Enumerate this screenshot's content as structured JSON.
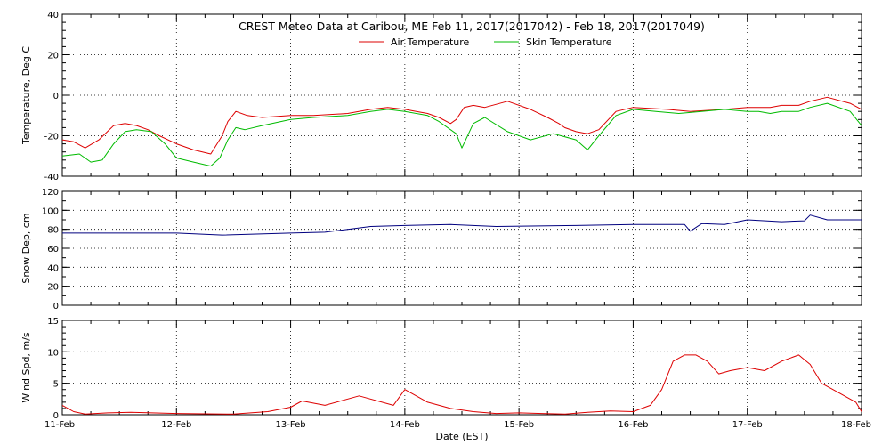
{
  "chart_data": {
    "title": "CREST Meteo Data at Caribou, ME   Feb 11, 2017(2017042) - Feb 18, 2017(2017049)",
    "xlabel": "Date (EST)",
    "x_range": [
      "11-Feb",
      "18-Feb"
    ],
    "x_tick_labels": [
      "11-Feb",
      "12-Feb",
      "13-Feb",
      "14-Feb",
      "15-Feb",
      "16-Feb",
      "17-Feb",
      "18-Feb"
    ],
    "grid": true,
    "panels": [
      {
        "type": "line",
        "ylabel": "Temperature, Deg C",
        "ylim": [
          -40,
          40
        ],
        "yticks": [
          -40,
          -20,
          0,
          20,
          40
        ],
        "legend_position": "top-center",
        "series": [
          {
            "name": "Air Temperature",
            "color": "#dd0000",
            "x_days": [
              0.0,
              0.1,
              0.2,
              0.32,
              0.45,
              0.55,
              0.65,
              0.75,
              0.85,
              1.0,
              1.15,
              1.3,
              1.4,
              1.45,
              1.52,
              1.62,
              1.75,
              2.0,
              2.2,
              2.5,
              2.7,
              2.85,
              3.0,
              3.1,
              3.2,
              3.3,
              3.4,
              3.45,
              3.52,
              3.6,
              3.7,
              3.9,
              4.1,
              4.25,
              4.35,
              4.4,
              4.5,
              4.6,
              4.7,
              4.85,
              5.0,
              5.3,
              5.5,
              5.8,
              6.0,
              6.2,
              6.3,
              6.45,
              6.55,
              6.7,
              6.9,
              7.0
            ],
            "values": [
              -22,
              -23,
              -26,
              -22,
              -15,
              -14,
              -15,
              -17,
              -20,
              -24,
              -27,
              -29,
              -20,
              -13,
              -8,
              -10,
              -11,
              -10,
              -10,
              -9,
              -7,
              -6,
              -7,
              -8,
              -9,
              -11,
              -14,
              -12,
              -6,
              -5,
              -6,
              -3,
              -7,
              -11,
              -14,
              -16,
              -18,
              -19,
              -17,
              -8,
              -6,
              -7,
              -8,
              -7,
              -6,
              -6,
              -5,
              -5,
              -3,
              -1,
              -4,
              -7
            ]
          },
          {
            "name": "Skin Temperature",
            "color": "#00bb00",
            "x_days": [
              0.0,
              0.15,
              0.25,
              0.35,
              0.45,
              0.55,
              0.65,
              0.78,
              0.9,
              1.0,
              1.15,
              1.3,
              1.38,
              1.45,
              1.52,
              1.6,
              1.75,
              2.0,
              2.2,
              2.5,
              2.7,
              2.85,
              3.0,
              3.2,
              3.3,
              3.4,
              3.45,
              3.5,
              3.6,
              3.7,
              3.9,
              4.1,
              4.3,
              4.5,
              4.6,
              4.7,
              4.85,
              5.0,
              5.2,
              5.4,
              5.6,
              5.8,
              6.0,
              6.1,
              6.2,
              6.3,
              6.45,
              6.55,
              6.7,
              6.9,
              7.0
            ],
            "values": [
              -30,
              -29,
              -33,
              -32,
              -24,
              -18,
              -17,
              -18,
              -24,
              -31,
              -33,
              -35,
              -31,
              -22,
              -16,
              -17,
              -15,
              -12,
              -11,
              -10,
              -8,
              -7,
              -8,
              -10,
              -13,
              -17,
              -19,
              -26,
              -14,
              -11,
              -18,
              -22,
              -19,
              -22,
              -27,
              -20,
              -10,
              -7,
              -8,
              -9,
              -8,
              -7,
              -8,
              -8,
              -9,
              -8,
              -8,
              -6,
              -4,
              -8,
              -15
            ]
          }
        ]
      },
      {
        "type": "line",
        "ylabel": "Snow Dep, cm",
        "ylim": [
          0,
          120
        ],
        "yticks": [
          0,
          20,
          40,
          60,
          80,
          100,
          120
        ],
        "series": [
          {
            "color": "#00007f",
            "x_days": [
              0.0,
              0.5,
              1.0,
              1.4,
              2.0,
              2.3,
              2.5,
              2.7,
              3.0,
              3.4,
              3.8,
              4.5,
              5.0,
              5.45,
              5.5,
              5.6,
              5.8,
              6.0,
              6.3,
              6.5,
              6.55,
              6.7,
              7.0
            ],
            "values": [
              76,
              76,
              76,
              74,
              76,
              77,
              80,
              83,
              84,
              85,
              83,
              84,
              85,
              85,
              78,
              86,
              85,
              90,
              88,
              89,
              95,
              90,
              90
            ]
          }
        ]
      },
      {
        "type": "line",
        "ylabel": "Wind Spd, m/s",
        "ylim": [
          0,
          15
        ],
        "yticks": [
          0,
          5,
          10,
          15
        ],
        "series": [
          {
            "color": "#dd0000",
            "x_days": [
              0.0,
              0.1,
              0.2,
              0.4,
              0.6,
              1.0,
              1.5,
              1.8,
              2.0,
              2.1,
              2.3,
              2.6,
              2.9,
              3.0,
              3.2,
              3.4,
              3.6,
              3.8,
              4.0,
              4.2,
              4.4,
              4.6,
              4.8,
              5.0,
              5.15,
              5.25,
              5.35,
              5.45,
              5.55,
              5.65,
              5.75,
              5.85,
              6.0,
              6.15,
              6.3,
              6.45,
              6.55,
              6.65,
              6.75,
              6.85,
              6.95,
              7.0
            ],
            "values": [
              1.5,
              0.5,
              0.1,
              0.3,
              0.4,
              0.2,
              0.1,
              0.5,
              1.2,
              2.2,
              1.5,
              3.0,
              1.5,
              4.0,
              2.0,
              1.0,
              0.5,
              0.2,
              0.3,
              0.2,
              0.1,
              0.4,
              0.6,
              0.5,
              1.5,
              4.0,
              8.5,
              9.5,
              9.5,
              8.5,
              6.5,
              7.0,
              7.5,
              7.0,
              8.5,
              9.5,
              8.0,
              5.0,
              4.0,
              3.0,
              2.0,
              0.5
            ]
          }
        ]
      }
    ]
  }
}
